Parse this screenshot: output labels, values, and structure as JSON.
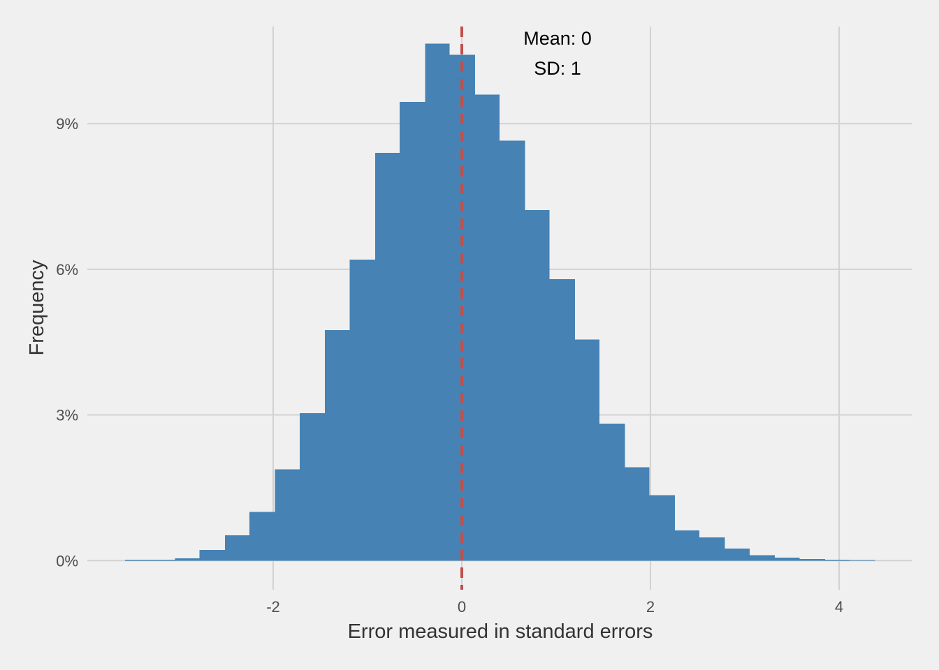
{
  "chart_data": {
    "type": "histogram",
    "xlabel": "Error measured in standard errors",
    "ylabel": "Frequency",
    "x_ticks": [
      {
        "value": -2,
        "label": "-2"
      },
      {
        "value": 0,
        "label": "0"
      },
      {
        "value": 2,
        "label": "2"
      },
      {
        "value": 4,
        "label": "4"
      }
    ],
    "y_ticks": [
      {
        "value": 0,
        "label": "0%"
      },
      {
        "value": 3,
        "label": "3%"
      },
      {
        "value": 6,
        "label": "6%"
      },
      {
        "value": 9,
        "label": "9%"
      }
    ],
    "xlim": [
      -3.97,
      4.77
    ],
    "ylim": [
      -0.6,
      11.0
    ],
    "bin_width": 0.265,
    "bins": [
      {
        "x0": -3.57,
        "x1": -3.31,
        "value": 0.02
      },
      {
        "x0": -3.31,
        "x1": -3.04,
        "value": 0.02
      },
      {
        "x0": -3.04,
        "x1": -2.78,
        "value": 0.05
      },
      {
        "x0": -2.78,
        "x1": -2.51,
        "value": 0.22
      },
      {
        "x0": -2.51,
        "x1": -2.25,
        "value": 0.52
      },
      {
        "x0": -2.25,
        "x1": -1.98,
        "value": 1.0
      },
      {
        "x0": -1.98,
        "x1": -1.72,
        "value": 1.88
      },
      {
        "x0": -1.72,
        "x1": -1.45,
        "value": 3.04
      },
      {
        "x0": -1.45,
        "x1": -1.19,
        "value": 4.75
      },
      {
        "x0": -1.19,
        "x1": -0.92,
        "value": 6.2
      },
      {
        "x0": -0.92,
        "x1": -0.66,
        "value": 8.4
      },
      {
        "x0": -0.66,
        "x1": -0.39,
        "value": 9.45
      },
      {
        "x0": -0.39,
        "x1": -0.13,
        "value": 10.65
      },
      {
        "x0": -0.13,
        "x1": 0.14,
        "value": 10.42
      },
      {
        "x0": 0.14,
        "x1": 0.4,
        "value": 9.6
      },
      {
        "x0": 0.4,
        "x1": 0.67,
        "value": 8.65
      },
      {
        "x0": 0.67,
        "x1": 0.93,
        "value": 7.22
      },
      {
        "x0": 0.93,
        "x1": 1.2,
        "value": 5.8
      },
      {
        "x0": 1.2,
        "x1": 1.46,
        "value": 4.55
      },
      {
        "x0": 1.46,
        "x1": 1.73,
        "value": 2.82
      },
      {
        "x0": 1.73,
        "x1": 1.99,
        "value": 1.92
      },
      {
        "x0": 1.99,
        "x1": 2.26,
        "value": 1.35
      },
      {
        "x0": 2.26,
        "x1": 2.52,
        "value": 0.62
      },
      {
        "x0": 2.52,
        "x1": 2.79,
        "value": 0.48
      },
      {
        "x0": 2.79,
        "x1": 3.05,
        "value": 0.25
      },
      {
        "x0": 3.05,
        "x1": 3.32,
        "value": 0.11
      },
      {
        "x0": 3.32,
        "x1": 3.58,
        "value": 0.06
      },
      {
        "x0": 3.58,
        "x1": 3.85,
        "value": 0.03
      },
      {
        "x0": 3.85,
        "x1": 4.11,
        "value": 0.02
      },
      {
        "x0": 4.11,
        "x1": 4.38,
        "value": 0.01
      }
    ],
    "mean_line": {
      "value": 0,
      "style": "dashed",
      "color": "#c0504d"
    },
    "annotations": [
      "Mean: 0",
      "SD: 1"
    ],
    "grid": true,
    "colors": {
      "background": "#f0f0f0",
      "bar": "#4682b4",
      "grid": "#d2d2d2",
      "mean_line": "#c0504d"
    }
  }
}
